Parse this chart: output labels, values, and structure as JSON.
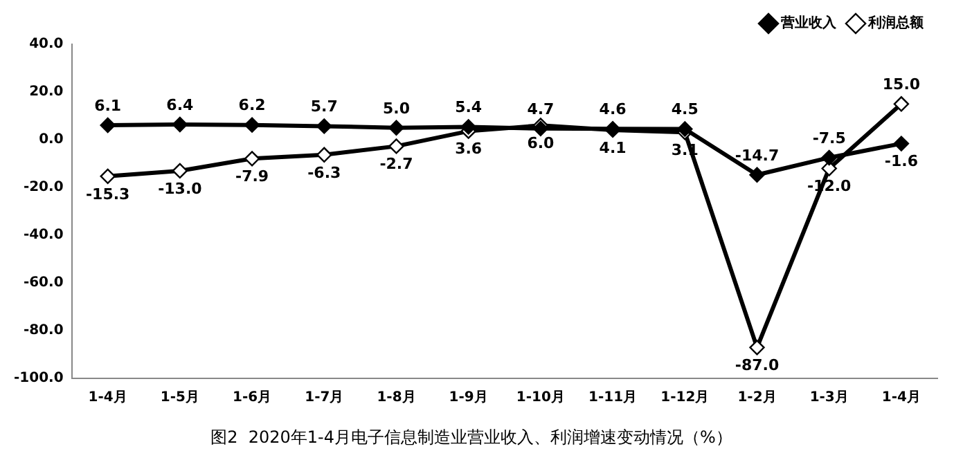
{
  "chart_data": {
    "type": "line",
    "title": "图2  2020年1-4月电子信息制造业营业收入、利润增速变动情况（%）",
    "categories": [
      "1-4月",
      "1-5月",
      "1-6月",
      "1-7月",
      "1-8月",
      "1-9月",
      "1-10月",
      "1-11月",
      "1-12月",
      "1-2月",
      "1-3月",
      "1-4月"
    ],
    "series": [
      {
        "name": "营业收入",
        "color": "#000000",
        "marker": "diamond",
        "values": [
          6.1,
          6.4,
          6.2,
          5.7,
          5.0,
          5.4,
          4.7,
          4.6,
          4.5,
          -14.7,
          -7.5,
          -1.6
        ],
        "value_labels": [
          "6.1",
          "6.4",
          "6.2",
          "5.7",
          "5.0",
          "5.4",
          "4.7",
          "4.6",
          "4.5",
          "-14.7",
          "-7.5",
          "-1.6"
        ]
      },
      {
        "name": "利润总额",
        "color": "#000000",
        "marker": "diamond",
        "values": [
          -15.3,
          -13.0,
          -7.9,
          -6.3,
          -2.7,
          3.6,
          6.0,
          4.1,
          3.1,
          -87.0,
          -12.0,
          15.0
        ],
        "value_labels": [
          "-15.3",
          "-13.0",
          "-7.9",
          "-6.3",
          "-2.7",
          "3.6",
          "6.0",
          "4.1",
          "3.1",
          "-87.0",
          "-12.0",
          "15.0"
        ]
      }
    ],
    "ylim": [
      -100,
      40
    ],
    "yticks": [
      {
        "value": -100,
        "label": "-100.0"
      },
      {
        "value": -80,
        "label": "-80.0"
      },
      {
        "value": -60,
        "label": "-60.0"
      },
      {
        "value": -40,
        "label": "-40.0"
      },
      {
        "value": -20,
        "label": "-20.0"
      },
      {
        "value": 0,
        "label": "0.0"
      },
      {
        "value": 20,
        "label": "20.0"
      },
      {
        "value": 40,
        "label": "40.0"
      }
    ],
    "grid": false,
    "legend": "top right",
    "line_style": "solid"
  }
}
